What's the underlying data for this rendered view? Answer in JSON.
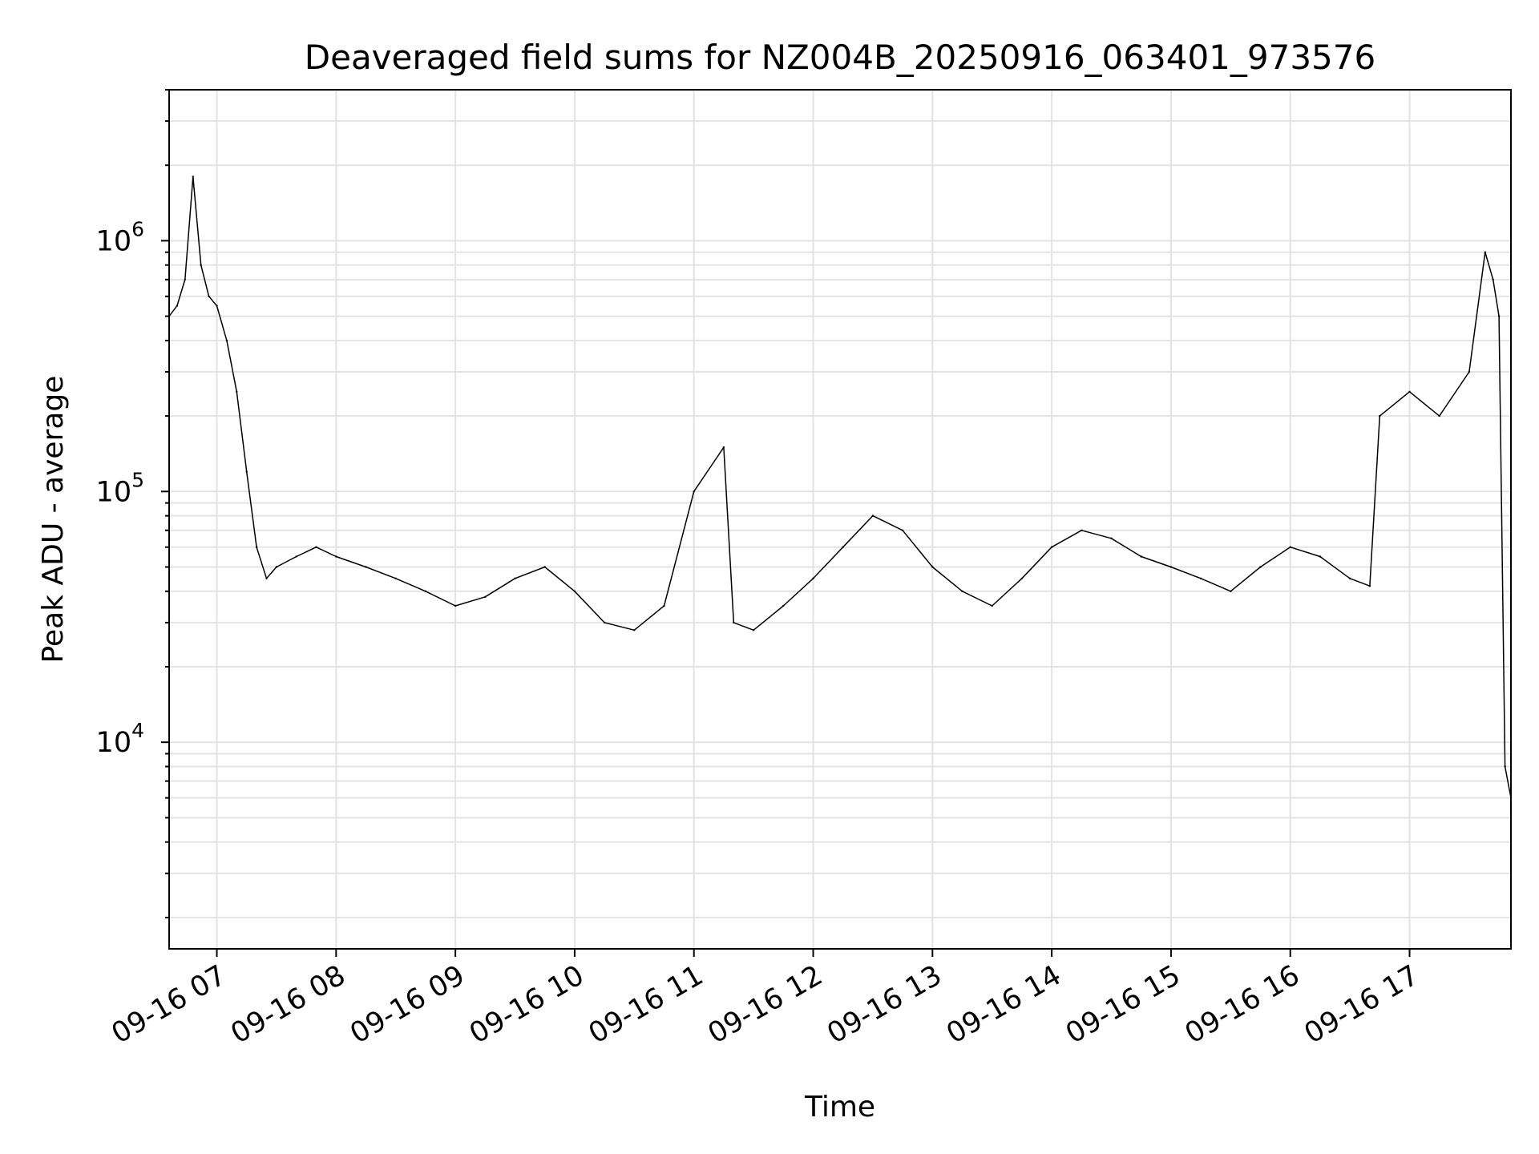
{
  "chart_data": {
    "type": "line",
    "title": "Deaveraged field sums for NZ004B_20250916_063401_973576",
    "xlabel": "Time",
    "ylabel": "Peak ADU - average",
    "yscale": "log",
    "ylim": [
      1500,
      4000000
    ],
    "xlim": [
      "2025-09-16 06:36",
      "2025-09-16 17:51"
    ],
    "grid": true,
    "x_ticks": [
      "09-16 07",
      "09-16 08",
      "09-16 09",
      "09-16 10",
      "09-16 11",
      "09-16 12",
      "09-16 13",
      "09-16 14",
      "09-16 15",
      "09-16 16",
      "09-16 17"
    ],
    "y_ticks": [
      {
        "base": "10",
        "exp": "4",
        "value": 10000
      },
      {
        "base": "10",
        "exp": "5",
        "value": 100000
      },
      {
        "base": "10",
        "exp": "6",
        "value": 1000000
      }
    ],
    "line_color": "#000000",
    "series": [
      {
        "x": [
          "06:36",
          "06:40",
          "06:44",
          "06:48",
          "06:52",
          "06:56",
          "07:00",
          "07:05",
          "07:10",
          "07:15",
          "07:20",
          "07:25",
          "07:30",
          "07:40",
          "07:50",
          "08:00",
          "08:15",
          "08:30",
          "08:45",
          "09:00",
          "09:15",
          "09:30",
          "09:45",
          "10:00",
          "10:15",
          "10:30",
          "10:45",
          "11:00",
          "11:15",
          "11:20",
          "11:30",
          "11:45",
          "12:00",
          "12:15",
          "12:30",
          "12:45",
          "13:00",
          "13:15",
          "13:30",
          "13:45",
          "14:00",
          "14:15",
          "14:30",
          "14:45",
          "15:00",
          "15:15",
          "15:30",
          "15:45",
          "16:00",
          "16:15",
          "16:30",
          "16:40",
          "16:45",
          "17:00",
          "17:15",
          "17:30",
          "17:38",
          "17:42",
          "17:45",
          "17:48",
          "17:51"
        ],
        "y": [
          500000,
          550000,
          700000,
          1800000,
          800000,
          600000,
          550000,
          400000,
          250000,
          120000,
          60000,
          45000,
          50000,
          55000,
          60000,
          55000,
          50000,
          45000,
          40000,
          35000,
          38000,
          45000,
          50000,
          40000,
          30000,
          28000,
          35000,
          100000,
          150000,
          30000,
          28000,
          35000,
          45000,
          60000,
          80000,
          70000,
          50000,
          40000,
          35000,
          45000,
          60000,
          70000,
          65000,
          55000,
          50000,
          45000,
          40000,
          50000,
          60000,
          55000,
          45000,
          42000,
          200000,
          250000,
          200000,
          300000,
          900000,
          700000,
          500000,
          8000,
          6000
        ]
      }
    ]
  }
}
